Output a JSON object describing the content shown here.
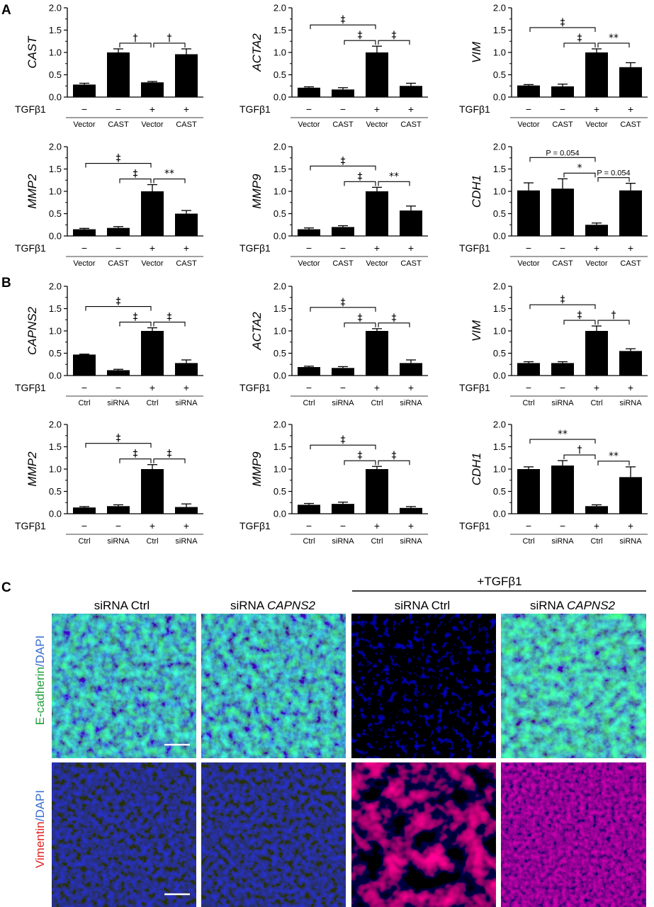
{
  "panels": {
    "a": "A",
    "b": "B",
    "c": "C"
  },
  "common": {
    "treatment_label": "TGFβ1",
    "y_ticks": [
      "0.0",
      "0.5",
      "1.0",
      "1.5",
      "2.0"
    ],
    "tgf_row": [
      "−",
      "−",
      "+",
      "+"
    ],
    "labels_A": [
      "Vector",
      "CAST",
      "Vector",
      "CAST"
    ],
    "labels_B": [
      "Ctrl",
      "siRNA",
      "Ctrl",
      "siRNA"
    ]
  },
  "chart_data": [
    {
      "panel": "A",
      "type": "bar",
      "ylabel": "CAST",
      "categories": [
        "Vector",
        "CAST",
        "Vector",
        "CAST"
      ],
      "tgfb1": [
        "−",
        "−",
        "+",
        "+"
      ],
      "values": [
        0.28,
        1.0,
        0.33,
        0.96
      ],
      "errors": [
        0.03,
        0.08,
        0.02,
        0.12
      ],
      "ylim": [
        0,
        2.0
      ],
      "significance": [
        {
          "from": 1,
          "to": 2,
          "symbol": "†",
          "level": 0
        },
        {
          "from": 2,
          "to": 3,
          "symbol": "†",
          "level": 0
        }
      ]
    },
    {
      "panel": "A",
      "type": "bar",
      "ylabel": "ACTA2",
      "categories": [
        "Vector",
        "CAST",
        "Vector",
        "CAST"
      ],
      "tgfb1": [
        "−",
        "−",
        "+",
        "+"
      ],
      "values": [
        0.21,
        0.17,
        1.0,
        0.25
      ],
      "errors": [
        0.02,
        0.04,
        0.14,
        0.06
      ],
      "ylim": [
        0,
        2.0
      ],
      "significance": [
        {
          "from": 0,
          "to": 2,
          "symbol": "‡",
          "level": 1
        },
        {
          "from": 1,
          "to": 2,
          "symbol": "‡",
          "level": 0
        },
        {
          "from": 2,
          "to": 3,
          "symbol": "‡",
          "level": 0
        }
      ]
    },
    {
      "panel": "A",
      "type": "bar",
      "ylabel": "VIM",
      "categories": [
        "Vector",
        "CAST",
        "Vector",
        "CAST"
      ],
      "tgfb1": [
        "−",
        "−",
        "+",
        "+"
      ],
      "values": [
        0.26,
        0.24,
        1.0,
        0.67
      ],
      "errors": [
        0.02,
        0.05,
        0.08,
        0.1
      ],
      "ylim": [
        0,
        2.0
      ],
      "significance": [
        {
          "from": 0,
          "to": 2,
          "symbol": "‡",
          "level": 1
        },
        {
          "from": 1,
          "to": 2,
          "symbol": "‡",
          "level": 0
        },
        {
          "from": 2,
          "to": 3,
          "symbol": "**",
          "level": 0
        }
      ]
    },
    {
      "panel": "A",
      "type": "bar",
      "ylabel": "MMP2",
      "categories": [
        "Vector",
        "CAST",
        "Vector",
        "CAST"
      ],
      "tgfb1": [
        "−",
        "−",
        "+",
        "+"
      ],
      "values": [
        0.15,
        0.18,
        1.0,
        0.5
      ],
      "errors": [
        0.02,
        0.03,
        0.15,
        0.07
      ],
      "ylim": [
        0,
        2.0
      ],
      "significance": [
        {
          "from": 0,
          "to": 2,
          "symbol": "‡",
          "level": 1
        },
        {
          "from": 1,
          "to": 2,
          "symbol": "‡",
          "level": 0
        },
        {
          "from": 2,
          "to": 3,
          "symbol": "**",
          "level": 0
        }
      ]
    },
    {
      "panel": "A",
      "type": "bar",
      "ylabel": "MMP9",
      "categories": [
        "Vector",
        "CAST",
        "Vector",
        "CAST"
      ],
      "tgfb1": [
        "−",
        "−",
        "+",
        "+"
      ],
      "values": [
        0.15,
        0.2,
        1.0,
        0.57
      ],
      "errors": [
        0.03,
        0.03,
        0.09,
        0.1
      ],
      "ylim": [
        0,
        2.0
      ],
      "significance": [
        {
          "from": 0,
          "to": 2,
          "symbol": "‡",
          "level": 1
        },
        {
          "from": 1,
          "to": 2,
          "symbol": "‡",
          "level": 0
        },
        {
          "from": 2,
          "to": 3,
          "symbol": "**",
          "level": 0
        }
      ]
    },
    {
      "panel": "A",
      "type": "bar",
      "ylabel": "CDH1",
      "categories": [
        "Vector",
        "CAST",
        "Vector",
        "CAST"
      ],
      "tgfb1": [
        "−",
        "−",
        "+",
        "+"
      ],
      "values": [
        1.02,
        1.06,
        0.25,
        1.02
      ],
      "errors": [
        0.17,
        0.22,
        0.04,
        0.16
      ],
      "ylim": [
        0,
        2.0
      ],
      "significance": [
        {
          "from": 0,
          "to": 2,
          "symbol": "P = 0.054",
          "level": 1,
          "small": true
        },
        {
          "from": 1,
          "to": 2,
          "symbol": "*",
          "level": 0
        },
        {
          "from": 2,
          "to": 3,
          "symbol": "P = 0.054",
          "level": 0,
          "small": true
        }
      ]
    },
    {
      "panel": "B",
      "type": "bar",
      "ylabel": "CAPNS2",
      "categories": [
        "Ctrl",
        "siRNA",
        "Ctrl",
        "siRNA"
      ],
      "tgfb1": [
        "−",
        "−",
        "+",
        "+"
      ],
      "values": [
        0.47,
        0.12,
        1.0,
        0.28
      ],
      "errors": [
        0.01,
        0.02,
        0.07,
        0.07
      ],
      "ylim": [
        0,
        2.0
      ],
      "significance": [
        {
          "from": 0,
          "to": 2,
          "symbol": "‡",
          "level": 1
        },
        {
          "from": 1,
          "to": 2,
          "symbol": "‡",
          "level": 0
        },
        {
          "from": 2,
          "to": 3,
          "symbol": "‡",
          "level": 0
        }
      ]
    },
    {
      "panel": "B",
      "type": "bar",
      "ylabel": "ACTA2",
      "categories": [
        "Ctrl",
        "siRNA",
        "Ctrl",
        "siRNA"
      ],
      "tgfb1": [
        "−",
        "−",
        "+",
        "+"
      ],
      "values": [
        0.19,
        0.17,
        1.0,
        0.28
      ],
      "errors": [
        0.02,
        0.03,
        0.05,
        0.07
      ],
      "ylim": [
        0,
        2.0
      ],
      "significance": [
        {
          "from": 0,
          "to": 2,
          "symbol": "‡",
          "level": 1
        },
        {
          "from": 1,
          "to": 2,
          "symbol": "‡",
          "level": 0
        },
        {
          "from": 2,
          "to": 3,
          "symbol": "‡",
          "level": 0
        }
      ]
    },
    {
      "panel": "B",
      "type": "bar",
      "ylabel": "VIM",
      "categories": [
        "Ctrl",
        "siRNA",
        "Ctrl",
        "siRNA"
      ],
      "tgfb1": [
        "−",
        "−",
        "+",
        "+"
      ],
      "values": [
        0.28,
        0.28,
        1.0,
        0.55
      ],
      "errors": [
        0.03,
        0.03,
        0.11,
        0.05
      ],
      "ylim": [
        0,
        2.0
      ],
      "significance": [
        {
          "from": 0,
          "to": 2,
          "symbol": "‡",
          "level": 1
        },
        {
          "from": 1,
          "to": 2,
          "symbol": "‡",
          "level": 0
        },
        {
          "from": 2,
          "to": 3,
          "symbol": "†",
          "level": 0
        }
      ]
    },
    {
      "panel": "B",
      "type": "bar",
      "ylabel": "MMP2",
      "categories": [
        "Ctrl",
        "siRNA",
        "Ctrl",
        "siRNA"
      ],
      "tgfb1": [
        "−",
        "−",
        "+",
        "+"
      ],
      "values": [
        0.14,
        0.17,
        1.0,
        0.15
      ],
      "errors": [
        0.02,
        0.03,
        0.1,
        0.07
      ],
      "ylim": [
        0,
        2.0
      ],
      "significance": [
        {
          "from": 0,
          "to": 2,
          "symbol": "‡",
          "level": 1
        },
        {
          "from": 1,
          "to": 2,
          "symbol": "‡",
          "level": 0
        },
        {
          "from": 2,
          "to": 3,
          "symbol": "‡",
          "level": 0
        }
      ]
    },
    {
      "panel": "B",
      "type": "bar",
      "ylabel": "MMP9",
      "categories": [
        "Ctrl",
        "siRNA",
        "Ctrl",
        "siRNA"
      ],
      "tgfb1": [
        "−",
        "−",
        "+",
        "+"
      ],
      "values": [
        0.2,
        0.22,
        1.0,
        0.13
      ],
      "errors": [
        0.03,
        0.04,
        0.06,
        0.03
      ],
      "ylim": [
        0,
        2.0
      ],
      "significance": [
        {
          "from": 0,
          "to": 2,
          "symbol": "‡",
          "level": 1
        },
        {
          "from": 1,
          "to": 2,
          "symbol": "‡",
          "level": 0
        },
        {
          "from": 2,
          "to": 3,
          "symbol": "‡",
          "level": 0
        }
      ]
    },
    {
      "panel": "B",
      "type": "bar",
      "ylabel": "CDH1",
      "categories": [
        "Ctrl",
        "siRNA",
        "Ctrl",
        "siRNA"
      ],
      "tgfb1": [
        "−",
        "−",
        "+",
        "+"
      ],
      "values": [
        1.0,
        1.08,
        0.17,
        0.82
      ],
      "errors": [
        0.05,
        0.11,
        0.03,
        0.23
      ],
      "ylim": [
        0,
        2.0
      ],
      "significance": [
        {
          "from": 0,
          "to": 2,
          "symbol": "**",
          "level": 1
        },
        {
          "from": 1,
          "to": 2,
          "symbol": "†",
          "level": 0
        },
        {
          "from": 2,
          "to": 3,
          "symbol": "**",
          "level": 0
        }
      ]
    }
  ],
  "micrographs": {
    "treatment_header": "+TGFβ1",
    "columns": [
      {
        "prefix": "siRNA ",
        "gene": "Ctrl",
        "gene_italic": false
      },
      {
        "prefix": "siRNA ",
        "gene": "CAPNS2",
        "gene_italic": true
      },
      {
        "prefix": "siRNA ",
        "gene": "Ctrl",
        "gene_italic": false
      },
      {
        "prefix": "siRNA ",
        "gene": "CAPNS2",
        "gene_italic": true
      }
    ],
    "rows": [
      {
        "stain": "E-cadherin",
        "counter": "/DAPI",
        "stain_color": "#1e9e3a",
        "counter_color": "#3a6fd0"
      },
      {
        "stain": "Vimentin",
        "counter": "/DAPI",
        "stain_color": "#e02020",
        "counter_color": "#3a6fd0"
      }
    ]
  }
}
